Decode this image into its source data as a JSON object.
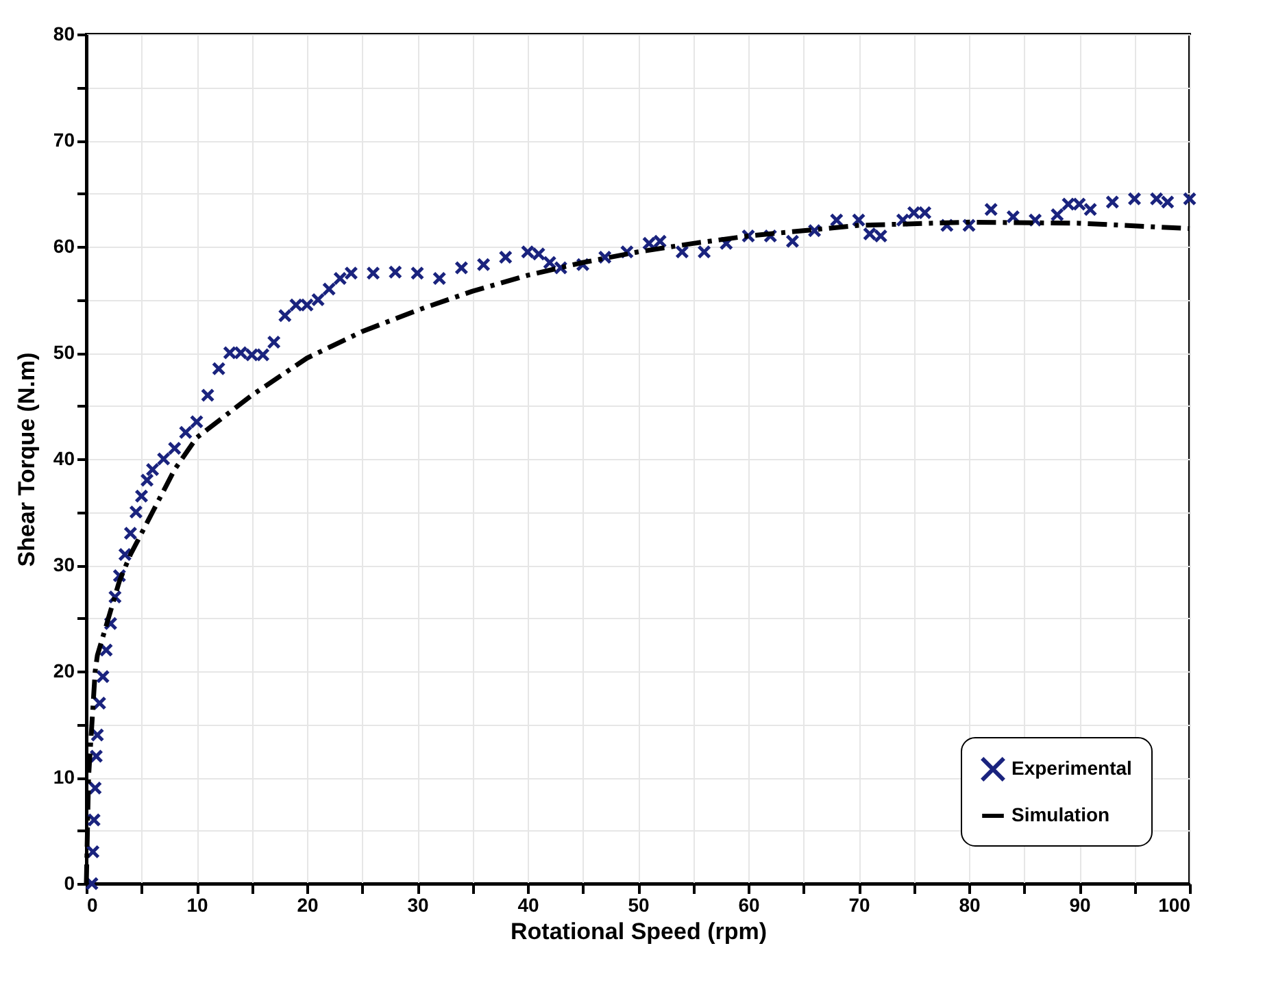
{
  "chart_data": {
    "type": "scatter",
    "xlabel": "Rotational Speed (rpm)",
    "ylabel": "Shear Torque (N.m)",
    "xlim": [
      0,
      100
    ],
    "ylim": [
      0,
      80
    ],
    "xticks": [
      0,
      {
        "value": 5,
        "label": null
      },
      10,
      {
        "value": 15,
        "label": null
      },
      20,
      {
        "value": 25,
        "label": null
      },
      30,
      {
        "value": 35,
        "label": null
      },
      40,
      {
        "value": 45,
        "label": null
      },
      50,
      {
        "value": 55,
        "label": null
      },
      60,
      {
        "value": 65,
        "label": null
      },
      70,
      {
        "value": 75,
        "label": null
      },
      80,
      {
        "value": 85,
        "label": null
      },
      90,
      {
        "value": 95,
        "label": null
      },
      100
    ],
    "yticks": [
      0,
      {
        "value": 5,
        "label": null
      },
      10,
      {
        "value": 15,
        "label": null
      },
      20,
      {
        "value": 25,
        "label": null
      },
      30,
      {
        "value": 35,
        "label": null
      },
      40,
      {
        "value": 45,
        "label": null
      },
      50,
      {
        "value": 55,
        "label": null
      },
      60,
      {
        "value": 65,
        "label": null
      },
      70,
      {
        "value": 75,
        "label": null
      },
      80
    ],
    "grid": true,
    "legend": "bottom right",
    "series": [
      {
        "name": "Experimental",
        "marker": "cross",
        "color": "#1a237e",
        "x": [
          0.5,
          0.6,
          0.7,
          0.8,
          0.9,
          1,
          1.2,
          1.5,
          1.8,
          2.2,
          2.6,
          3,
          3.5,
          4,
          4.5,
          5,
          5.5,
          6,
          7,
          8,
          9,
          10,
          11,
          12,
          13,
          14,
          15,
          16,
          17,
          18,
          19,
          20,
          21,
          22,
          23,
          24,
          26,
          28,
          30,
          32,
          34,
          36,
          38,
          40,
          41,
          42,
          43,
          45,
          47,
          49,
          51,
          52,
          54,
          56,
          58,
          60,
          62,
          64,
          66,
          68,
          70,
          71,
          72,
          74,
          75,
          76,
          78,
          80,
          82,
          84,
          86,
          88,
          89,
          90,
          91,
          93,
          95,
          97,
          98,
          100
        ],
        "values": [
          0,
          3,
          6,
          9,
          12,
          14,
          17,
          19.5,
          22,
          24.5,
          27,
          29,
          31,
          33,
          35,
          36.5,
          38,
          39,
          40,
          41,
          42.5,
          43.5,
          46,
          48.5,
          50,
          50,
          49.8,
          49.8,
          51,
          53.5,
          54.5,
          54.5,
          55,
          56,
          57,
          57.5,
          57.5,
          57.6,
          57.5,
          57,
          58,
          58.3,
          59,
          59.5,
          59.3,
          58.5,
          58,
          58.3,
          59,
          59.5,
          60.3,
          60.5,
          59.5,
          59.5,
          60.3,
          61,
          61,
          60.5,
          61.5,
          62.5,
          62.5,
          61.2,
          61,
          62.5,
          63.2,
          63.2,
          62,
          62,
          63.5,
          62.8,
          62.5,
          63,
          64,
          64,
          63.5,
          64.2,
          64.5,
          64.5,
          64.2,
          64.5
        ]
      },
      {
        "name": "Simulation",
        "type": "line",
        "marker": "none",
        "color": "#000000",
        "line_style": "dashed",
        "x": [
          0,
          0.2,
          0.5,
          0.8,
          1,
          2,
          3,
          4,
          6,
          8,
          10,
          15,
          20,
          25,
          30,
          35,
          40,
          45,
          50,
          55,
          60,
          65,
          70,
          80,
          90,
          100
        ],
        "values": [
          0,
          10,
          15,
          20,
          21.5,
          25,
          28.5,
          31,
          35,
          39,
          42,
          46,
          49.5,
          52,
          54,
          55.8,
          57.3,
          58.5,
          59.5,
          60.3,
          61,
          61.5,
          62,
          62.3,
          62.2,
          61.7
        ]
      }
    ]
  }
}
